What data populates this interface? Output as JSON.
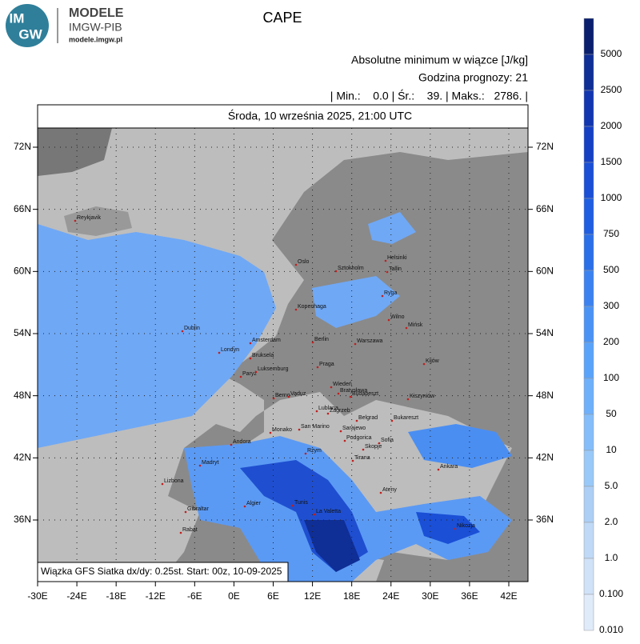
{
  "logo": {
    "line1": "IM",
    "line2": "GW",
    "brand": "MODELE",
    "org": "IMGW-PIB",
    "url": "modele.imgw.pl"
  },
  "header": {
    "title": "CAPE",
    "subtitle": "Absolutne minimum w wiązce [J/kg]",
    "forecast_hour": "Godzina prognozy: 21",
    "stats": "| Min.:    0.0 | Śr.:    39. | Maks.:   2786. |"
  },
  "map": {
    "date": "Środa, 10 września 2025, 21:00 UTC",
    "footer": "Wiązka GFS Siatka dx/dy: 0.25st. Start: 00z, 10-09-2025",
    "lon_labels": [
      "-30E",
      "-24E",
      "-18E",
      "-12E",
      "-6E",
      "0E",
      "6E",
      "12E",
      "18E",
      "24E",
      "30E",
      "36E",
      "42E"
    ],
    "lat_labels": [
      "72N",
      "66N",
      "60N",
      "54N",
      "48N",
      "42N",
      "36N"
    ],
    "cities": [
      "Reykjavik",
      "Oslo",
      "Sztokholm",
      "Helsinki",
      "Tallin",
      "Ryga",
      "Kopenhaga",
      "Wilno",
      "Mińsk",
      "Dublin",
      "Londyn",
      "Amsterdam",
      "Berlin",
      "Warszawa",
      "Kijów",
      "Bruksela",
      "Luksemburg",
      "Paryż",
      "Praga",
      "Wiedeń",
      "Bratysława",
      "Budapeszt",
      "Berno",
      "Vaduz",
      "Lublana",
      "Zagrzeb",
      "Kiszyniów",
      "Monako",
      "San Marino",
      "Sarajewo",
      "Belgrad",
      "Bukareszt",
      "Andora",
      "Podgorica",
      "Sofia",
      "Skopje",
      "Madryt",
      "Rzym",
      "Tirana",
      "Ankara",
      "Lizbona",
      "Ateny",
      "Algier",
      "Tunis",
      "La Valetta",
      "Gibraltar",
      "Rabat",
      "Nikozja"
    ]
  },
  "colorbar": {
    "labels": [
      "5000",
      "2500",
      "2000",
      "1500",
      "1000",
      "750",
      "500",
      "300",
      "200",
      "100",
      "50",
      "10",
      "5.0",
      "2.0",
      "1.0",
      "0.100",
      "0.010"
    ],
    "colors": [
      "#0a1f6e",
      "#0f2e96",
      "#1236b0",
      "#1540c4",
      "#1a4fd6",
      "#1f5ee0",
      "#2b6fe8",
      "#3b82f0",
      "#4a93f5",
      "#5aa3fa",
      "#6fb0fb",
      "#84bdfa",
      "#99c9f8",
      "#adcff6",
      "#bfd9f7",
      "#d0e2f8",
      "#e0ebfa"
    ]
  }
}
